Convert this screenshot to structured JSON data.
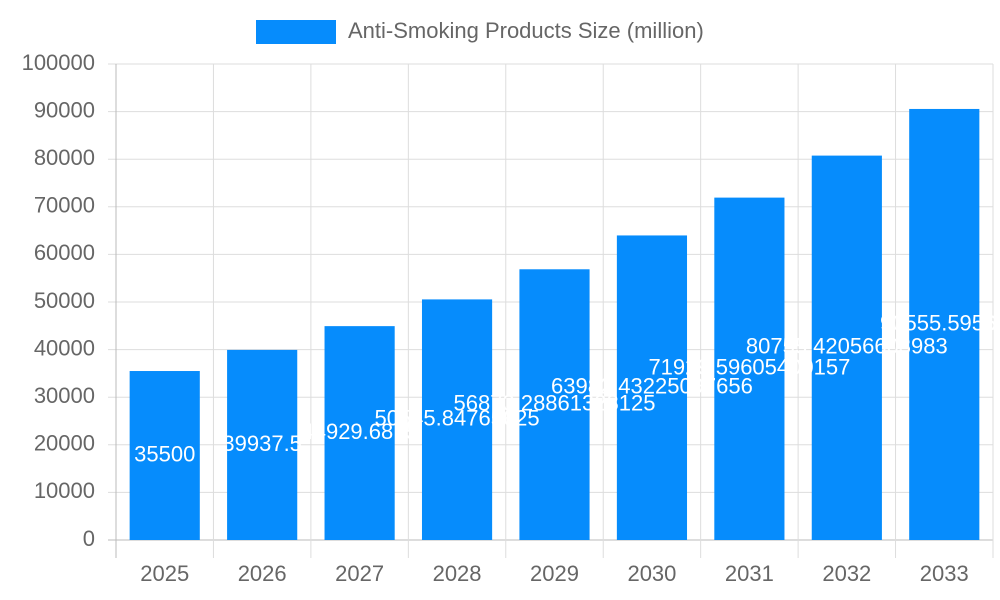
{
  "chart_data": {
    "type": "bar",
    "series": [
      {
        "name": "Anti-Smoking Products Size (million)",
        "color": "#068cfc",
        "values": [
          35500,
          39937.5,
          44929.6875,
          50545.84765625,
          56873.28861328125,
          63982.43225097656,
          71929.59605400157,
          80755.42056603983,
          90555.59563
        ]
      }
    ],
    "categories": [
      "2025",
      "2026",
      "2027",
      "2028",
      "2029",
      "2030",
      "2031",
      "2032",
      "2033"
    ],
    "ylim": [
      0,
      100000
    ],
    "yticks": [
      0,
      10000,
      20000,
      30000,
      40000,
      50000,
      60000,
      70000,
      80000,
      90000,
      100000
    ],
    "grid": true
  }
}
